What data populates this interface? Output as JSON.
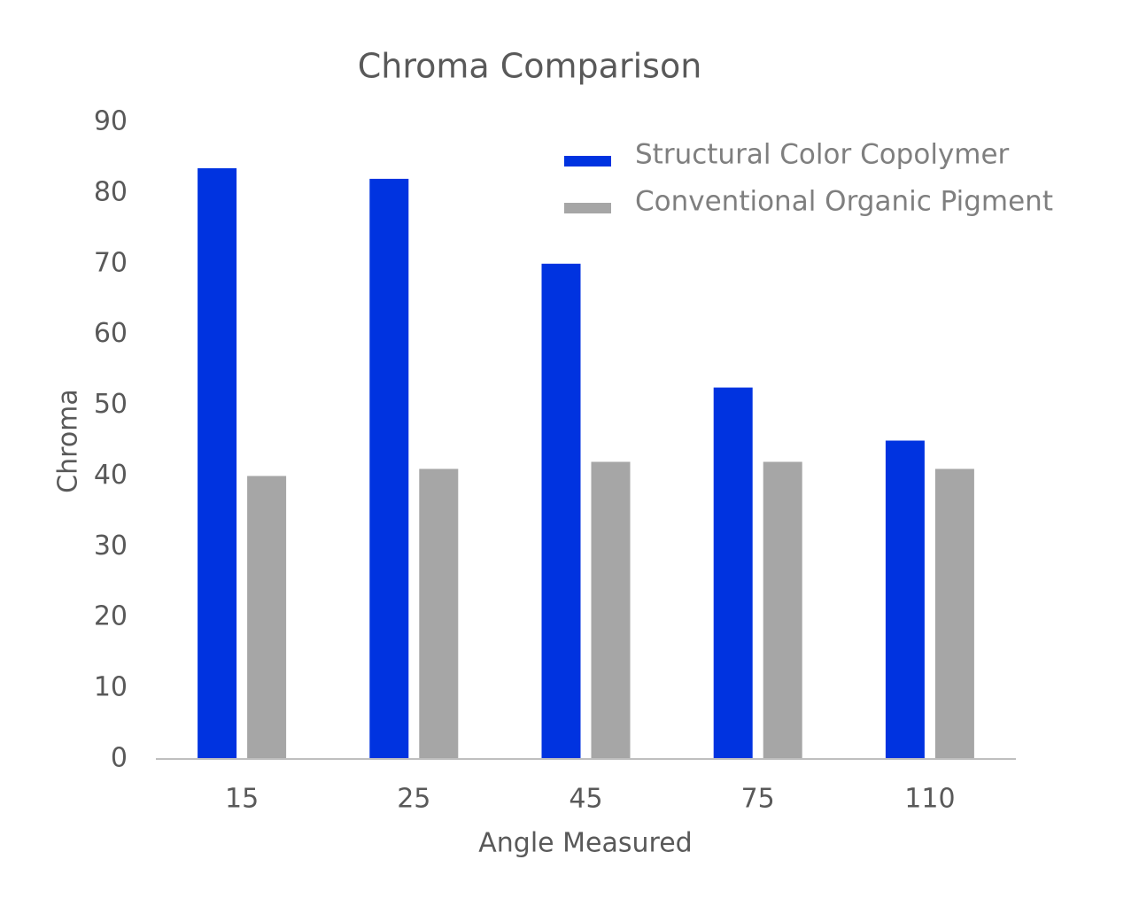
{
  "chart_data": {
    "type": "bar",
    "title": "Chroma Comparison",
    "x_label": "Angle Measured",
    "y_label": "Chroma",
    "categories": [
      "15",
      "25",
      "45",
      "75",
      "110"
    ],
    "series": [
      {
        "name": "Structural Color Copolymer",
        "color": "#0033e0",
        "values": [
          83.5,
          82,
          70,
          52.5,
          45
        ]
      },
      {
        "name": "Conventional Organic Pigment",
        "color": "#a6a6a6",
        "values": [
          40,
          41,
          42,
          42,
          41
        ]
      }
    ],
    "ylim": [
      0,
      90
    ],
    "yticks": [
      0,
      10,
      20,
      30,
      40,
      50,
      60,
      70,
      80,
      90
    ],
    "grid": false,
    "legend": "top-right"
  }
}
